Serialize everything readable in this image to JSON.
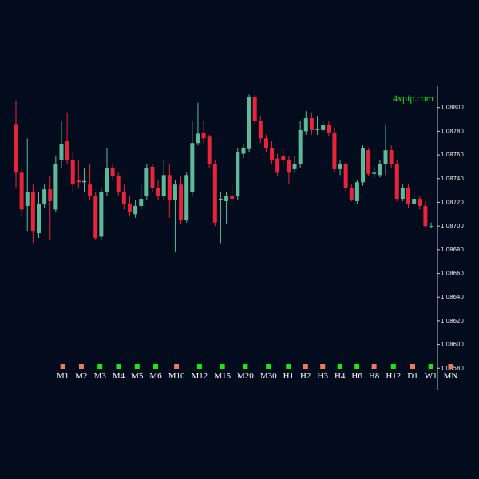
{
  "chart_data": {
    "type": "candlestick",
    "watermark": "4xpip.com",
    "up_color": "#5cb99a",
    "down_color": "#e8233a",
    "ylim": [
      1.08562,
      1.08818
    ],
    "yticks": [
      {
        "value": 1.088,
        "label": "1.08800"
      },
      {
        "value": 1.0878,
        "label": "1.08780"
      },
      {
        "value": 1.0876,
        "label": "1.08760"
      },
      {
        "value": 1.0874,
        "label": "1.08740"
      },
      {
        "value": 1.0872,
        "label": "1.08720"
      },
      {
        "value": 1.087,
        "label": "1.08700"
      },
      {
        "value": 1.0868,
        "label": "1.08680"
      },
      {
        "value": 1.0866,
        "label": "1.08660"
      },
      {
        "value": 1.0864,
        "label": "1.08640"
      },
      {
        "value": 1.0862,
        "label": "1.08620"
      },
      {
        "value": 1.086,
        "label": "1.08600"
      },
      {
        "value": 1.0858,
        "label": "1.08580"
      }
    ],
    "open": [
      1.08786,
      1.08745,
      1.08717,
      1.08729,
      1.08694,
      1.08719,
      1.08731,
      1.08714,
      1.08756,
      1.08772,
      1.08756,
      1.08739,
      1.08737,
      1.08735,
      1.08725,
      1.08691,
      1.08729,
      1.08749,
      1.08742,
      1.08729,
      1.08719,
      1.0871,
      1.08717,
      1.08725,
      1.0875,
      1.08732,
      1.08725,
      1.08743,
      1.08722,
      1.08735,
      1.08705,
      1.08729,
      1.0877,
      1.08779,
      1.08776,
      1.08752,
      1.08722,
      1.08721,
      1.08725,
      1.08725,
      1.08761,
      1.08765,
      1.08809,
      1.08789,
      1.08774,
      1.08766,
      1.08757,
      1.08759,
      1.08756,
      1.08748,
      1.08752,
      1.0878,
      1.08791,
      1.08781,
      1.08781,
      1.08785,
      1.08779,
      1.08748,
      1.08752,
      1.08732,
      1.08721,
      1.08737,
      1.08764,
      1.08744,
      1.08743,
      1.08752,
      1.08764,
      1.08752,
      1.08723,
      1.08732,
      1.08719,
      1.08723,
      1.08717,
      1.087
    ],
    "high": [
      1.08806,
      1.08748,
      1.08774,
      1.08735,
      1.08729,
      1.08735,
      1.08742,
      1.08759,
      1.08789,
      1.08796,
      1.08762,
      1.08756,
      1.08749,
      1.08752,
      1.08729,
      1.08732,
      1.08766,
      1.08752,
      1.08745,
      1.08735,
      1.08725,
      1.08722,
      1.08735,
      1.08752,
      1.08752,
      1.08739,
      1.08756,
      1.08752,
      1.08739,
      1.08742,
      1.08745,
      1.08789,
      1.08804,
      1.08789,
      1.08777,
      1.08756,
      1.08729,
      1.08729,
      1.08735,
      1.08766,
      1.08769,
      1.08811,
      1.08811,
      1.08793,
      1.08777,
      1.08772,
      1.08761,
      1.08766,
      1.08759,
      1.08759,
      1.08789,
      1.08797,
      1.08796,
      1.08793,
      1.08789,
      1.08789,
      1.08783,
      1.08756,
      1.08754,
      1.08735,
      1.08739,
      1.08768,
      1.08766,
      1.0875,
      1.08756,
      1.08786,
      1.08768,
      1.08756,
      1.08735,
      1.08735,
      1.08729,
      1.08725,
      1.08721,
      1.08703
    ],
    "low": [
      1.08732,
      1.08708,
      1.08696,
      1.08685,
      1.0869,
      1.08715,
      1.08688,
      1.08712,
      1.08749,
      1.08752,
      1.08729,
      1.08732,
      1.08729,
      1.08722,
      1.08688,
      1.08688,
      1.08725,
      1.08739,
      1.08725,
      1.08714,
      1.08708,
      1.08707,
      1.08714,
      1.08722,
      1.08729,
      1.08722,
      1.08722,
      1.08707,
      1.08678,
      1.08702,
      1.08703,
      1.08725,
      1.08768,
      1.08769,
      1.08749,
      1.087,
      1.08685,
      1.08702,
      1.08721,
      1.08722,
      1.08757,
      1.08762,
      1.08786,
      1.0877,
      1.08762,
      1.08752,
      1.08742,
      1.08752,
      1.08735,
      1.08745,
      1.08749,
      1.08777,
      1.08777,
      1.08777,
      1.08779,
      1.08776,
      1.08745,
      1.08743,
      1.08729,
      1.08721,
      1.08719,
      1.08734,
      1.08742,
      1.08741,
      1.08741,
      1.08743,
      1.08749,
      1.08721,
      1.08721,
      1.08715,
      1.08717,
      1.08714,
      1.08699,
      1.08698
    ],
    "close": [
      1.08745,
      1.08714,
      1.08729,
      1.08696,
      1.08719,
      1.08731,
      1.08721,
      1.08752,
      1.08769,
      1.08756,
      1.08735,
      1.08737,
      1.08738,
      1.08725,
      1.0869,
      1.08729,
      1.08749,
      1.08742,
      1.08729,
      1.08719,
      1.08712,
      1.08717,
      1.08723,
      1.08749,
      1.08732,
      1.08725,
      1.08743,
      1.08722,
      1.08735,
      1.08705,
      1.08743,
      1.0877,
      1.08778,
      1.08774,
      1.08752,
      1.08703,
      1.08723,
      1.08725,
      1.08723,
      1.08762,
      1.08766,
      1.08809,
      1.08789,
      1.08774,
      1.08766,
      1.08756,
      1.08745,
      1.08756,
      1.08745,
      1.08752,
      1.08781,
      1.08791,
      1.08781,
      1.08782,
      1.08785,
      1.08779,
      1.08748,
      1.08752,
      1.08732,
      1.08722,
      1.08737,
      1.08766,
      1.08744,
      1.08745,
      1.08752,
      1.08764,
      1.08752,
      1.08723,
      1.08732,
      1.08719,
      1.08723,
      1.08717,
      1.087,
      1.087
    ],
    "timeframes": [
      {
        "label": "M1",
        "color": "#f07860"
      },
      {
        "label": "M2",
        "color": "#f07860"
      },
      {
        "label": "M3",
        "color": "#19e619"
      },
      {
        "label": "M4",
        "color": "#19e619"
      },
      {
        "label": "M5",
        "color": "#19e619"
      },
      {
        "label": "M6",
        "color": "#19e619"
      },
      {
        "label": "M10",
        "color": "#f07860"
      },
      {
        "label": "M12",
        "color": "#19e619"
      },
      {
        "label": "M15",
        "color": "#19e619"
      },
      {
        "label": "M20",
        "color": "#19e619"
      },
      {
        "label": "M30",
        "color": "#19e619"
      },
      {
        "label": "H1",
        "color": "#19e619"
      },
      {
        "label": "H2",
        "color": "#f07860"
      },
      {
        "label": "H3",
        "color": "#f07860"
      },
      {
        "label": "H4",
        "color": "#19e619"
      },
      {
        "label": "H6",
        "color": "#19e619"
      },
      {
        "label": "H8",
        "color": "#f07860"
      },
      {
        "label": "H12",
        "color": "#19e619"
      },
      {
        "label": "D1",
        "color": "#f07860"
      },
      {
        "label": "W1",
        "color": "#19e619"
      },
      {
        "label": "MN",
        "color": "#f07860"
      }
    ]
  }
}
